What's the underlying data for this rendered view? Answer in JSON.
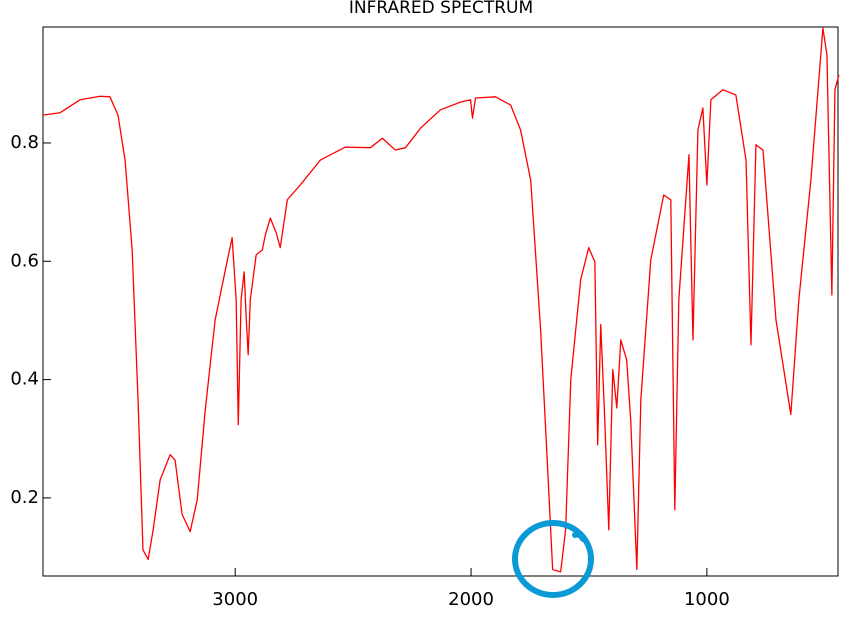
{
  "chart_data": {
    "type": "line",
    "title": "INFRARED SPECTRUM",
    "color": "#ff0000",
    "x": [
      3815,
      3743,
      3658,
      3573,
      3531,
      3497,
      3467,
      3437,
      3412,
      3391,
      3369,
      3348,
      3318,
      3276,
      3255,
      3225,
      3191,
      3161,
      3127,
      3085,
      3042,
      3013,
      2996,
      2987,
      2975,
      2962,
      2953,
      2945,
      2936,
      2911,
      2885,
      2872,
      2851,
      2826,
      2809,
      2779,
      2724,
      2639,
      2533,
      2427,
      2376,
      2321,
      2278,
      2214,
      2130,
      2045,
      2002,
      1994,
      1981,
      1896,
      1832,
      1790,
      1747,
      1705,
      1675,
      1654,
      1620,
      1599,
      1577,
      1535,
      1501,
      1475,
      1463,
      1450,
      1433,
      1416,
      1399,
      1382,
      1365,
      1340,
      1323,
      1297,
      1280,
      1238,
      1183,
      1153,
      1136,
      1119,
      1076,
      1059,
      1038,
      1017,
      1000,
      983,
      932,
      877,
      834,
      813,
      792,
      762,
      707,
      644,
      610,
      559,
      508,
      491,
      470,
      457,
      440
    ],
    "values": [
      0.847,
      0.851,
      0.873,
      0.879,
      0.878,
      0.847,
      0.771,
      0.619,
      0.366,
      0.112,
      0.096,
      0.146,
      0.231,
      0.273,
      0.264,
      0.172,
      0.143,
      0.197,
      0.349,
      0.501,
      0.585,
      0.64,
      0.535,
      0.324,
      0.535,
      0.582,
      0.501,
      0.442,
      0.535,
      0.611,
      0.619,
      0.645,
      0.673,
      0.648,
      0.623,
      0.704,
      0.729,
      0.771,
      0.793,
      0.792,
      0.808,
      0.788,
      0.792,
      0.825,
      0.856,
      0.869,
      0.873,
      0.842,
      0.876,
      0.878,
      0.864,
      0.822,
      0.737,
      0.484,
      0.248,
      0.079,
      0.075,
      0.146,
      0.4,
      0.569,
      0.623,
      0.599,
      0.29,
      0.493,
      0.332,
      0.146,
      0.417,
      0.352,
      0.467,
      0.433,
      0.332,
      0.079,
      0.366,
      0.602,
      0.712,
      0.704,
      0.18,
      0.535,
      0.78,
      0.467,
      0.822,
      0.859,
      0.729,
      0.873,
      0.89,
      0.881,
      0.771,
      0.459,
      0.797,
      0.788,
      0.501,
      0.341,
      0.535,
      0.737,
      0.994,
      0.949,
      0.543,
      0.89,
      0.915
    ],
    "xlim": [
      3815,
      444
    ],
    "ylim": [
      0.068,
      0.996
    ],
    "xticks": [
      3000,
      2000,
      1000
    ],
    "yticks": [
      0.2,
      0.4,
      0.6,
      0.8
    ]
  }
}
